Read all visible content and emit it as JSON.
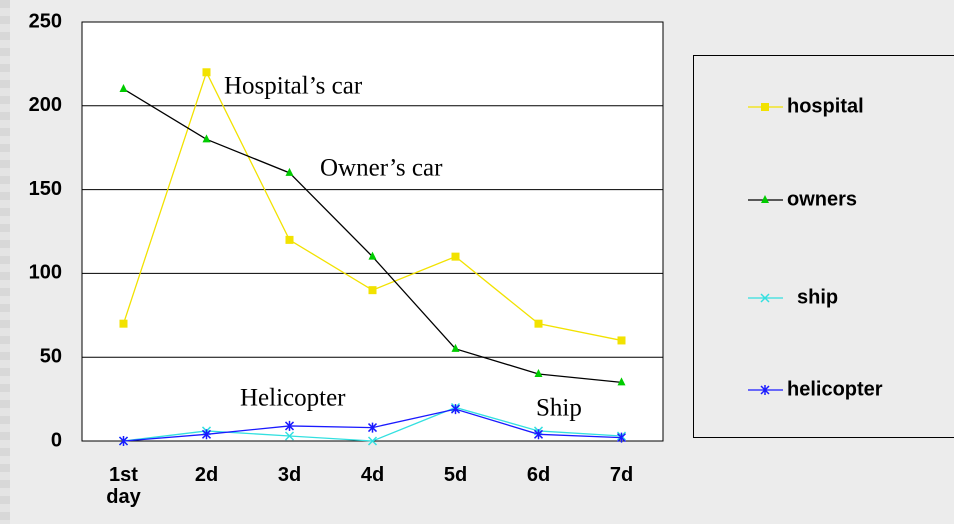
{
  "chart_data": {
    "type": "line",
    "categories": [
      "1st day",
      "2d",
      "3d",
      "4d",
      "5d",
      "6d",
      "7d"
    ],
    "ylim": [
      0,
      250
    ],
    "yticks": [
      0,
      50,
      100,
      150,
      200,
      250
    ],
    "grid": true,
    "legend": "right",
    "series": [
      {
        "name": "hospital",
        "color": "#f2e200",
        "marker_color": "#f2e200",
        "marker": "square",
        "values": [
          70,
          220,
          120,
          90,
          110,
          70,
          60
        ]
      },
      {
        "name": "owners",
        "color": "#000000",
        "marker_color": "#00cc00",
        "marker": "triangle",
        "values": [
          210,
          180,
          160,
          110,
          55,
          40,
          35
        ]
      },
      {
        "name": "ship",
        "color": "#33e0e0",
        "marker_color": "#33e0e0",
        "marker": "x",
        "values": [
          0,
          6,
          3,
          0,
          20,
          6,
          3
        ]
      },
      {
        "name": "helicopter",
        "color": "#1a1aff",
        "marker_color": "#1a1aff",
        "marker": "star",
        "values": [
          0,
          4,
          9,
          8,
          19,
          4,
          2
        ]
      }
    ],
    "annotations": [
      "Hospital’s car",
      "Owner’s car",
      "Helicopter",
      "Ship"
    ]
  }
}
